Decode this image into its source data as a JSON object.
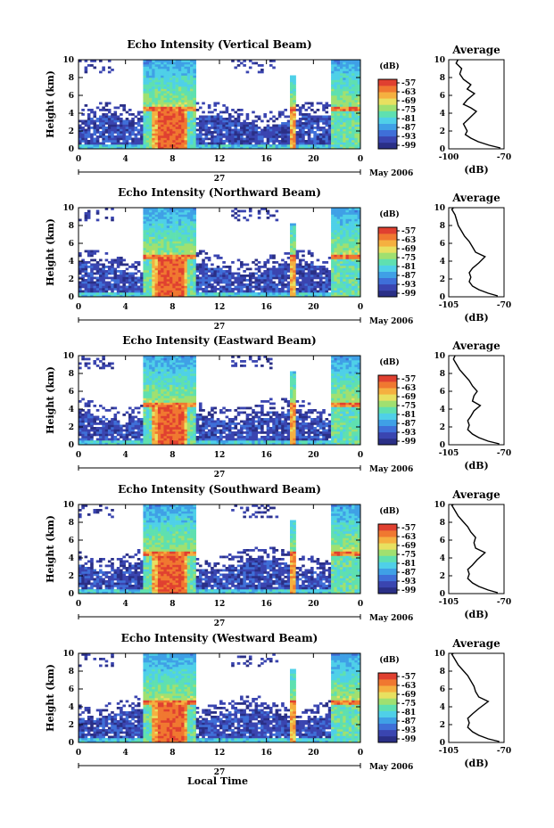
{
  "colors": {
    "scale": [
      "#2a2f86",
      "#3a45b0",
      "#3f6fd8",
      "#3fa0e6",
      "#4fd0e8",
      "#5fe0b0",
      "#a0e070",
      "#e8e060",
      "#f5b040",
      "#f07830",
      "#e04030"
    ],
    "background": "#ffffff"
  },
  "colorbar": {
    "unit": "(dB)",
    "ticks": [
      "-57",
      "-63",
      "-69",
      "-75",
      "-81",
      "-87",
      "-93",
      "-99"
    ]
  },
  "shared": {
    "ylabel": "Height (km)",
    "xlabel": "Local Time",
    "day_label": "27",
    "date_label": "May 2006",
    "avg_title": "Average",
    "avg_xlabel": "(dB)"
  },
  "chart_data": [
    {
      "type": "heatmap",
      "title": "Echo Intensity (Vertical Beam)",
      "x_ticks": [
        "0",
        "4",
        "8",
        "12",
        "16",
        "20",
        "0"
      ],
      "y_ticks": [
        "0",
        "2",
        "4",
        "6",
        "8",
        "10"
      ],
      "xlim": [
        0,
        24
      ],
      "ylim": [
        0,
        10
      ],
      "profile": {
        "type": "line",
        "xlim": [
          -100,
          -70
        ],
        "x_ticks": [
          "-100",
          "-70"
        ],
        "y_ticks": [
          "0",
          "2",
          "4",
          "6",
          "8",
          "10"
        ],
        "points": [
          [
            -72,
            0.1
          ],
          [
            -78,
            0.4
          ],
          [
            -84,
            0.8
          ],
          [
            -88,
            1.2
          ],
          [
            -91,
            1.6
          ],
          [
            -90,
            2.0
          ],
          [
            -91,
            2.4
          ],
          [
            -92,
            2.8
          ],
          [
            -90,
            3.2
          ],
          [
            -88,
            3.6
          ],
          [
            -85,
            4.2
          ],
          [
            -88,
            4.6
          ],
          [
            -92,
            5.0
          ],
          [
            -90,
            5.5
          ],
          [
            -86,
            6.2
          ],
          [
            -90,
            6.7
          ],
          [
            -88,
            7.2
          ],
          [
            -92,
            7.8
          ],
          [
            -94,
            8.4
          ],
          [
            -93,
            9.0
          ],
          [
            -96,
            9.6
          ],
          [
            -95,
            10.0
          ]
        ]
      }
    },
    {
      "type": "heatmap",
      "title": "Echo Intensity (Northward Beam)",
      "x_ticks": [
        "0",
        "4",
        "8",
        "12",
        "16",
        "20",
        "0"
      ],
      "y_ticks": [
        "0",
        "2",
        "4",
        "6",
        "8",
        "10"
      ],
      "xlim": [
        0,
        24
      ],
      "ylim": [
        0,
        10
      ],
      "profile": {
        "type": "line",
        "xlim": [
          -105,
          -70
        ],
        "x_ticks": [
          "-105",
          "-70"
        ],
        "y_ticks": [
          "0",
          "2",
          "4",
          "6",
          "8",
          "10"
        ],
        "points": [
          [
            -74,
            0.1
          ],
          [
            -80,
            0.4
          ],
          [
            -86,
            0.8
          ],
          [
            -90,
            1.2
          ],
          [
            -92,
            1.7
          ],
          [
            -91,
            2.2
          ],
          [
            -92,
            2.7
          ],
          [
            -90,
            3.2
          ],
          [
            -86,
            3.8
          ],
          [
            -82,
            4.5
          ],
          [
            -88,
            5.0
          ],
          [
            -90,
            5.6
          ],
          [
            -92,
            6.2
          ],
          [
            -95,
            6.8
          ],
          [
            -97,
            7.4
          ],
          [
            -99,
            8.0
          ],
          [
            -100,
            8.6
          ],
          [
            -101,
            9.2
          ],
          [
            -103,
            9.8
          ],
          [
            -102,
            10.0
          ]
        ]
      }
    },
    {
      "type": "heatmap",
      "title": "Echo Intensity (Eastward Beam)",
      "x_ticks": [
        "0",
        "4",
        "8",
        "12",
        "16",
        "20",
        "0"
      ],
      "y_ticks": [
        "0",
        "2",
        "4",
        "6",
        "8",
        "10"
      ],
      "xlim": [
        0,
        24
      ],
      "ylim": [
        0,
        10
      ],
      "profile": {
        "type": "line",
        "xlim": [
          -105,
          -70
        ],
        "x_ticks": [
          "-105",
          "-70"
        ],
        "y_ticks": [
          "0",
          "2",
          "4",
          "6",
          "8",
          "10"
        ],
        "points": [
          [
            -73,
            0.1
          ],
          [
            -80,
            0.4
          ],
          [
            -86,
            0.8
          ],
          [
            -90,
            1.2
          ],
          [
            -93,
            1.7
          ],
          [
            -92,
            2.2
          ],
          [
            -93,
            2.7
          ],
          [
            -91,
            3.2
          ],
          [
            -89,
            3.8
          ],
          [
            -85,
            4.4
          ],
          [
            -90,
            4.9
          ],
          [
            -89,
            5.5
          ],
          [
            -87,
            6.0
          ],
          [
            -90,
            6.6
          ],
          [
            -92,
            7.2
          ],
          [
            -95,
            7.8
          ],
          [
            -98,
            8.4
          ],
          [
            -100,
            9.0
          ],
          [
            -102,
            9.6
          ],
          [
            -101,
            10.0
          ]
        ]
      }
    },
    {
      "type": "heatmap",
      "title": "Echo Intensity (Southward Beam)",
      "x_ticks": [
        "0",
        "4",
        "8",
        "12",
        "16",
        "20",
        "0"
      ],
      "y_ticks": [
        "0",
        "2",
        "4",
        "6",
        "8",
        "10"
      ],
      "xlim": [
        0,
        24
      ],
      "ylim": [
        0,
        10
      ],
      "profile": {
        "type": "line",
        "xlim": [
          -105,
          -70
        ],
        "x_ticks": [
          "-105",
          "-70"
        ],
        "y_ticks": [
          "0",
          "2",
          "4",
          "6",
          "8",
          "10"
        ],
        "points": [
          [
            -74,
            0.1
          ],
          [
            -80,
            0.4
          ],
          [
            -86,
            0.8
          ],
          [
            -90,
            1.2
          ],
          [
            -93,
            1.7
          ],
          [
            -92,
            2.2
          ],
          [
            -93,
            2.7
          ],
          [
            -90,
            3.2
          ],
          [
            -87,
            3.8
          ],
          [
            -82,
            4.6
          ],
          [
            -88,
            5.1
          ],
          [
            -89,
            5.7
          ],
          [
            -88,
            6.3
          ],
          [
            -91,
            6.9
          ],
          [
            -93,
            7.5
          ],
          [
            -96,
            8.1
          ],
          [
            -99,
            8.7
          ],
          [
            -101,
            9.3
          ],
          [
            -103,
            9.9
          ],
          [
            -102,
            10.0
          ]
        ]
      }
    },
    {
      "type": "heatmap",
      "title": "Echo Intensity (Westward Beam)",
      "x_ticks": [
        "0",
        "4",
        "8",
        "12",
        "16",
        "20",
        "0"
      ],
      "y_ticks": [
        "0",
        "2",
        "4",
        "6",
        "8",
        "10"
      ],
      "xlim": [
        0,
        24
      ],
      "ylim": [
        0,
        10
      ],
      "profile": {
        "type": "line",
        "xlim": [
          -105,
          -70
        ],
        "x_ticks": [
          "-105",
          "-70"
        ],
        "y_ticks": [
          "0",
          "2",
          "4",
          "6",
          "8",
          "10"
        ],
        "points": [
          [
            -73,
            0.1
          ],
          [
            -80,
            0.4
          ],
          [
            -86,
            0.8
          ],
          [
            -90,
            1.2
          ],
          [
            -93,
            1.7
          ],
          [
            -92,
            2.2
          ],
          [
            -93,
            2.7
          ],
          [
            -90,
            3.2
          ],
          [
            -86,
            3.8
          ],
          [
            -80,
            4.6
          ],
          [
            -86,
            5.1
          ],
          [
            -88,
            5.7
          ],
          [
            -89,
            6.3
          ],
          [
            -91,
            6.9
          ],
          [
            -93,
            7.5
          ],
          [
            -96,
            8.1
          ],
          [
            -99,
            8.7
          ],
          [
            -101,
            9.3
          ],
          [
            -103,
            9.9
          ],
          [
            -102,
            10.0
          ]
        ]
      }
    }
  ]
}
